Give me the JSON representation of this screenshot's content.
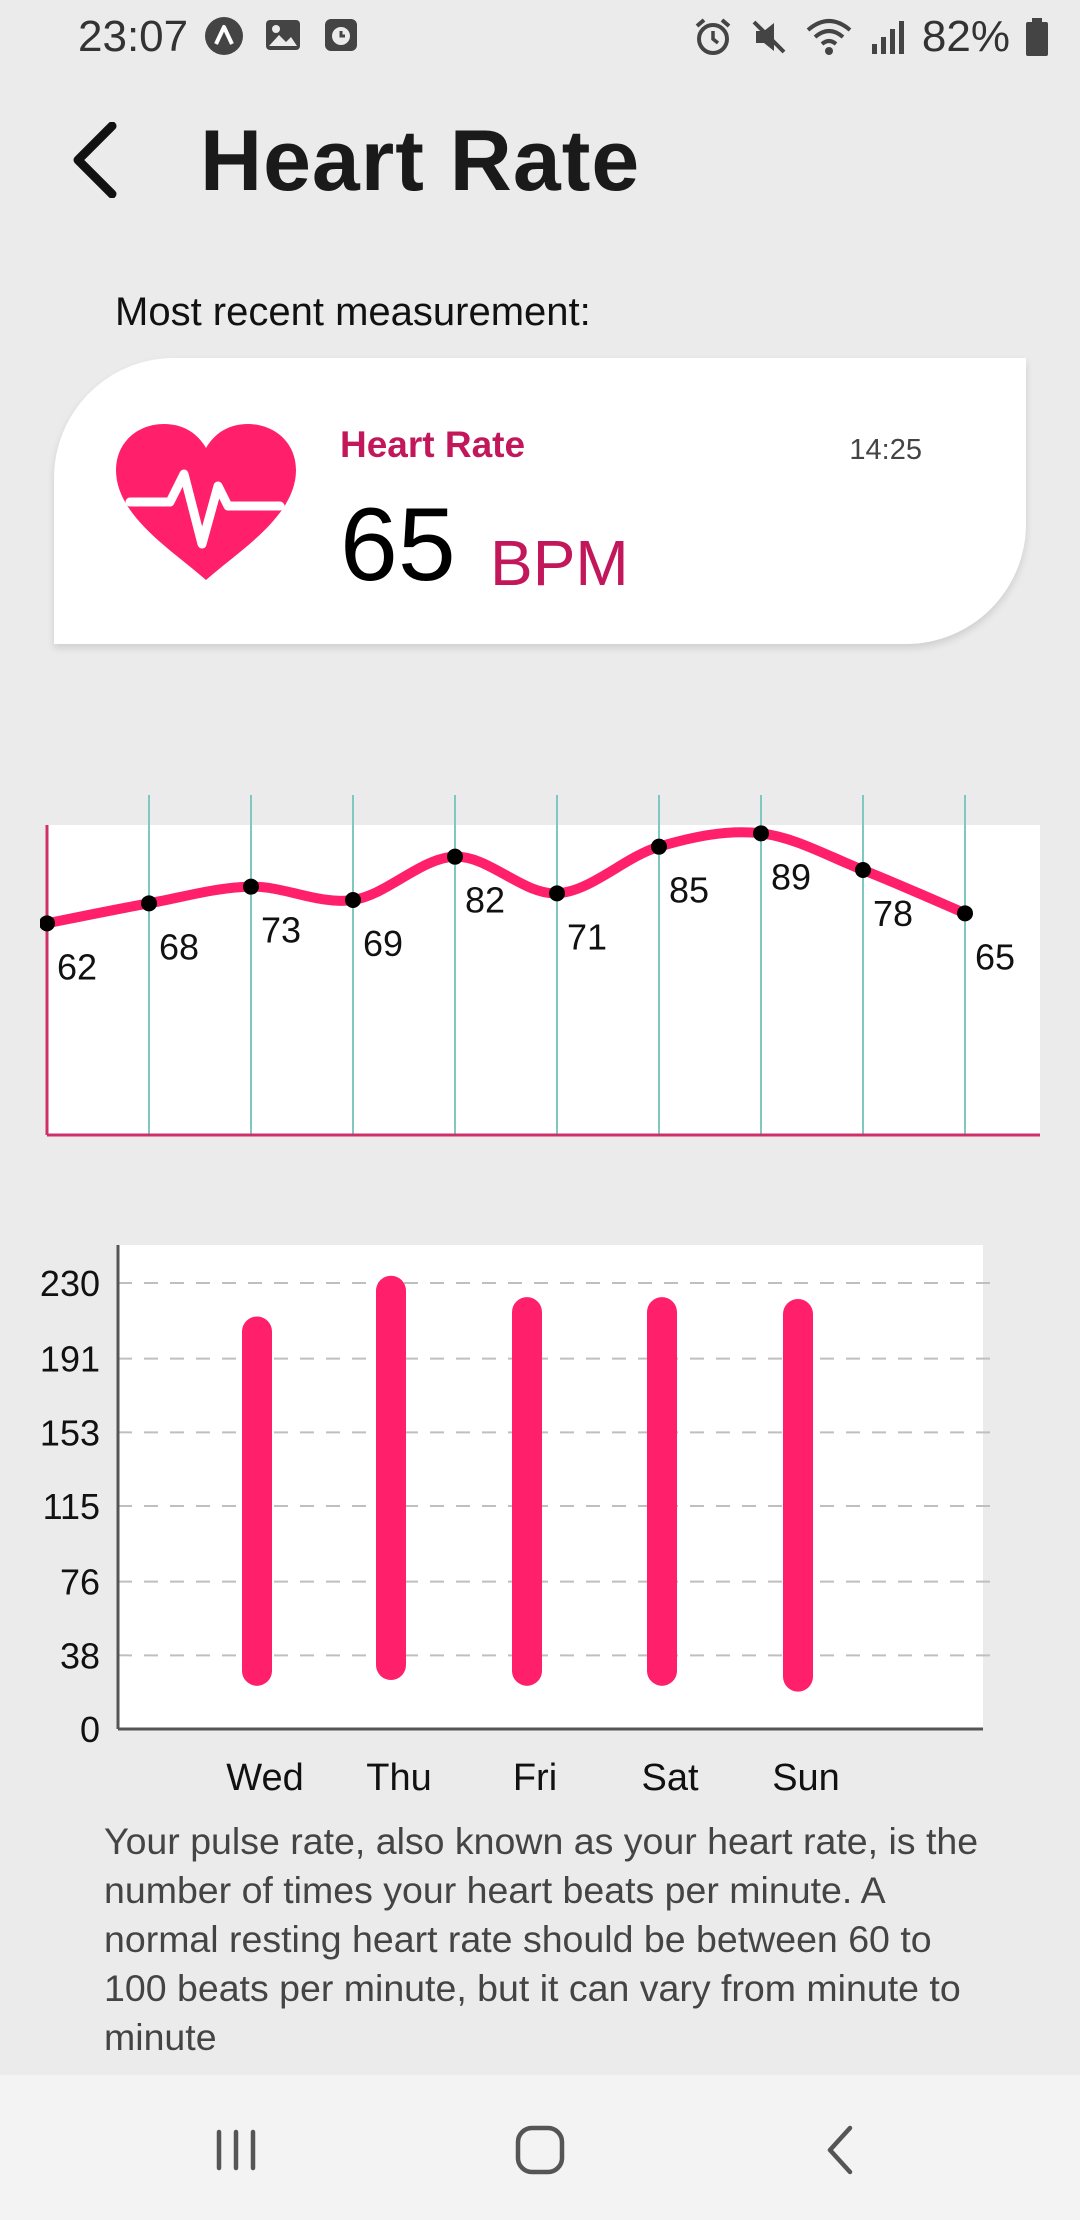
{
  "status_bar": {
    "time": "23:07",
    "left_icons": [
      "app-notification-icon",
      "image-icon",
      "clock-app-icon"
    ],
    "right_icons": [
      "alarm-icon",
      "mute-icon",
      "wifi-icon",
      "signal-icon"
    ],
    "battery": "82%"
  },
  "header": {
    "title": "Heart Rate",
    "back_icon": "chevron-left-icon"
  },
  "recent": {
    "label": "Most recent measurement:",
    "card": {
      "title": "Heart Rate",
      "time": "14:25",
      "value": "65",
      "unit": "BPM",
      "icon": "heart-pulse-icon"
    }
  },
  "colors": {
    "accent": "#ff1f6b",
    "accent_dark": "#c2185b",
    "grid_teal": "#7ec8c0",
    "axis": "#d0306a"
  },
  "chart_data": [
    {
      "type": "line",
      "title": "",
      "x": [
        1,
        2,
        3,
        4,
        5,
        6,
        7,
        8,
        9,
        10
      ],
      "series": [
        {
          "values": [
            62,
            68,
            73,
            69,
            82,
            71,
            85,
            89,
            78,
            65
          ]
        }
      ],
      "ylim": [
        0,
        100
      ],
      "data_labels": [
        "62",
        "68",
        "73",
        "69",
        "82",
        "71",
        "85",
        "89",
        "78",
        "65"
      ],
      "grid": "vertical"
    },
    {
      "type": "bar",
      "title": "",
      "categories": [
        "Wed",
        "Thu",
        "Fri",
        "Sat",
        "Sun"
      ],
      "ranges": [
        [
          30,
          205
        ],
        [
          33,
          226
        ],
        [
          30,
          215
        ],
        [
          30,
          215
        ],
        [
          27,
          214
        ]
      ],
      "ytick_labels": [
        "230",
        "191",
        "153",
        "115",
        "76",
        "38",
        "0"
      ],
      "ylim": [
        0,
        230
      ],
      "grid": "horizontal-dashed"
    }
  ],
  "description": "Your pulse rate, also known as your heart rate, is the number of times your heart beats per minute. A normal resting heart rate should be between 60 to 100 beats per minute, but it can vary from minute to minute",
  "nav": {
    "recents": "recents-icon",
    "home": "home-icon",
    "back": "back-icon"
  }
}
